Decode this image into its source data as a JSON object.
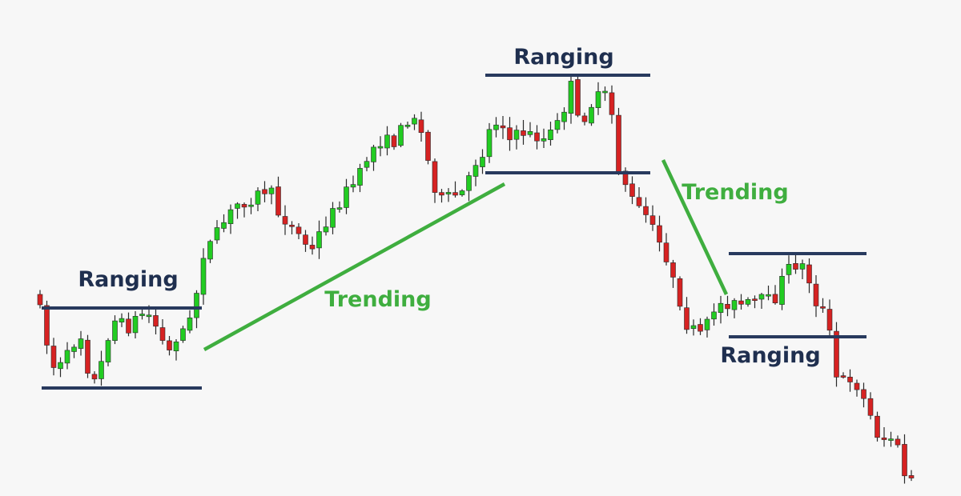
{
  "chart_data": {
    "type": "candlestick",
    "title": "",
    "xlabel": "",
    "ylabel": "",
    "grid": false,
    "colors": {
      "up": "#22cc22",
      "down": "#d62222",
      "wick": "#2a2a2a",
      "level": "#283a5e",
      "trend": "#3fae3f",
      "ranging_text": "#1f2f4f",
      "trending_text": "#3fae3f"
    },
    "annotations": [
      {
        "text": "Ranging",
        "kind": "ranging"
      },
      {
        "text": "Trending",
        "kind": "trending"
      },
      {
        "text": "Ranging",
        "kind": "ranging"
      },
      {
        "text": "Trending",
        "kind": "trending"
      },
      {
        "text": "Ranging",
        "kind": "ranging"
      }
    ],
    "phases": [
      {
        "kind": "ranging",
        "level_high": 385,
        "level_low": 485
      },
      {
        "kind": "trending",
        "from": 437,
        "to": 230
      },
      {
        "kind": "ranging",
        "level_high": 94,
        "level_low": 216
      },
      {
        "kind": "trending",
        "from": 200,
        "to": 368
      },
      {
        "kind": "ranging",
        "level_high": 317,
        "level_low": 421
      }
    ]
  }
}
